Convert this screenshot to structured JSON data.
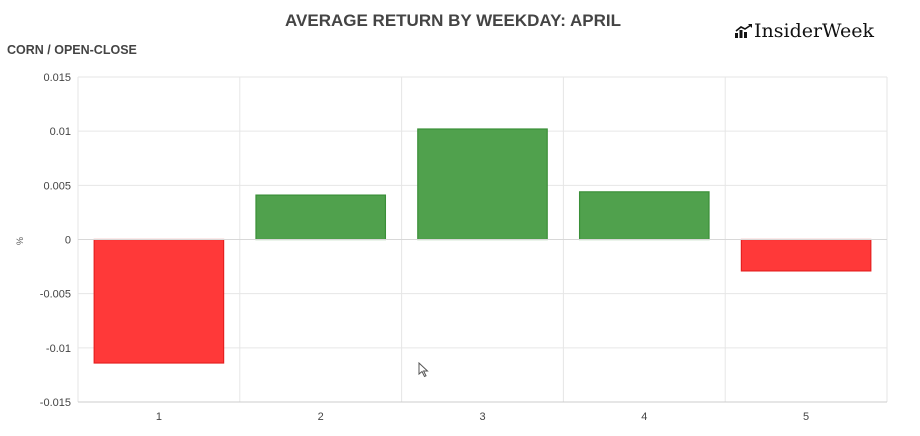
{
  "header": {
    "title": "AVERAGE RETURN BY WEEKDAY: APRIL",
    "subtitle": "CORN / OPEN-CLOSE",
    "logo_text": "InsiderWeek",
    "logo_icon": "chart-trend-icon"
  },
  "chart_data": {
    "type": "bar",
    "title": "AVERAGE RETURN BY WEEKDAY: APRIL",
    "subtitle": "CORN / OPEN-CLOSE",
    "xlabel": "",
    "ylabel": "%",
    "categories": [
      "1",
      "2",
      "3",
      "4",
      "5"
    ],
    "values": [
      -0.0114,
      0.0041,
      0.0102,
      0.0044,
      -0.0029
    ],
    "ylim": [
      -0.015,
      0.015
    ],
    "yticks": [
      "0.015",
      "0.01",
      "0.005",
      "0",
      "-0.005",
      "-0.01",
      "-0.015"
    ],
    "ytick_values": [
      0.015,
      0.01,
      0.005,
      0,
      -0.005,
      -0.01,
      -0.015
    ],
    "grid": true,
    "legend": "none",
    "colors": {
      "positive_fill": "#4a9e47",
      "positive_stroke": "#3a8f38",
      "negative_fill": "#ff3333",
      "negative_stroke": "#e62020",
      "grid": "#e6e6e6"
    }
  }
}
